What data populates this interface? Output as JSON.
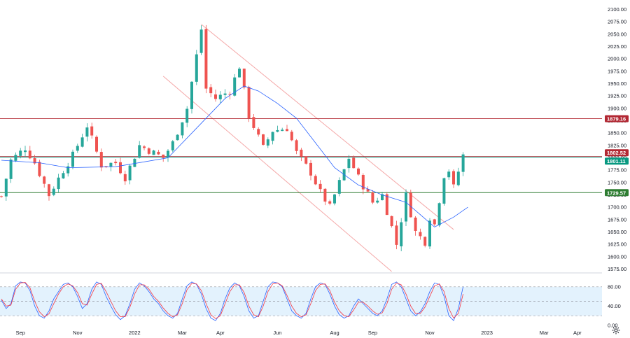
{
  "chart_data": [
    {
      "type": "candlestick",
      "title": "",
      "price_axis": {
        "ylim": [
          1570,
          2105
        ],
        "ticks": [
          "2100.00",
          "2075.00",
          "2050.00",
          "2025.00",
          "2000.00",
          "1975.00",
          "1950.00",
          "1925.00",
          "1900.00",
          "1875.00",
          "1850.00",
          "1825.00",
          "1800.00",
          "1775.00",
          "1750.00",
          "1725.00",
          "1700.00",
          "1675.00",
          "1650.00",
          "1625.00",
          "1600.00",
          "1575.00"
        ],
        "tick_values": [
          2100,
          2075,
          2050,
          2025,
          2000,
          1975,
          1950,
          1925,
          1900,
          1875,
          1850,
          1825,
          1800,
          1775,
          1750,
          1725,
          1700,
          1675,
          1650,
          1625,
          1600,
          1575
        ]
      },
      "time_axis": {
        "labels": [
          "Sep",
          "Nov",
          "2022",
          "Mar",
          "Apr",
          "Jun",
          "Aug",
          "Sep",
          "Nov",
          "2023",
          "Mar",
          "Apr"
        ],
        "label_bars": [
          4,
          16,
          28,
          38,
          46,
          58,
          70,
          78,
          90,
          102,
          114,
          121
        ]
      },
      "ohlc_anchors": [
        {
          "bar": 0,
          "close": 1722
        },
        {
          "bar": 2,
          "close": 1795
        },
        {
          "bar": 5,
          "close": 1820
        },
        {
          "bar": 7,
          "close": 1790
        },
        {
          "bar": 10,
          "close": 1725
        },
        {
          "bar": 13,
          "close": 1775
        },
        {
          "bar": 15,
          "close": 1805
        },
        {
          "bar": 18,
          "close": 1865
        },
        {
          "bar": 21,
          "close": 1785
        },
        {
          "bar": 24,
          "close": 1790
        },
        {
          "bar": 26,
          "close": 1760
        },
        {
          "bar": 29,
          "close": 1825
        },
        {
          "bar": 31,
          "close": 1815
        },
        {
          "bar": 34,
          "close": 1800
        },
        {
          "bar": 36,
          "close": 1830
        },
        {
          "bar": 39,
          "close": 1900
        },
        {
          "bar": 42,
          "close": 2060
        },
        {
          "bar": 43,
          "close": 1940
        },
        {
          "bar": 45,
          "close": 1920
        },
        {
          "bar": 48,
          "close": 1935
        },
        {
          "bar": 50,
          "close": 1985
        },
        {
          "bar": 52,
          "close": 1885
        },
        {
          "bar": 55,
          "close": 1820
        },
        {
          "bar": 57,
          "close": 1855
        },
        {
          "bar": 60,
          "close": 1860
        },
        {
          "bar": 62,
          "close": 1810
        },
        {
          "bar": 65,
          "close": 1770
        },
        {
          "bar": 67,
          "close": 1730
        },
        {
          "bar": 69,
          "close": 1700
        },
        {
          "bar": 71,
          "close": 1750
        },
        {
          "bar": 73,
          "close": 1800
        },
        {
          "bar": 75,
          "close": 1760
        },
        {
          "bar": 78,
          "close": 1710
        },
        {
          "bar": 80,
          "close": 1725
        },
        {
          "bar": 82,
          "close": 1660
        },
        {
          "bar": 83,
          "close": 1625
        },
        {
          "bar": 85,
          "close": 1725
        },
        {
          "bar": 87,
          "close": 1650
        },
        {
          "bar": 89,
          "close": 1630
        },
        {
          "bar": 90,
          "close": 1680
        },
        {
          "bar": 91,
          "close": 1665
        },
        {
          "bar": 93,
          "close": 1765
        },
        {
          "bar": 94,
          "close": 1775
        },
        {
          "bar": 95,
          "close": 1740
        },
        {
          "bar": 97,
          "close": 1805
        }
      ],
      "moving_average": {
        "color": "#2962ff",
        "points": [
          {
            "bar": 0,
            "value": 1795
          },
          {
            "bar": 8,
            "value": 1790
          },
          {
            "bar": 14,
            "value": 1780
          },
          {
            "bar": 24,
            "value": 1782
          },
          {
            "bar": 35,
            "value": 1800
          },
          {
            "bar": 40,
            "value": 1850
          },
          {
            "bar": 47,
            "value": 1920
          },
          {
            "bar": 51,
            "value": 1945
          },
          {
            "bar": 54,
            "value": 1935
          },
          {
            "bar": 58,
            "value": 1910
          },
          {
            "bar": 62,
            "value": 1880
          },
          {
            "bar": 66,
            "value": 1830
          },
          {
            "bar": 70,
            "value": 1780
          },
          {
            "bar": 75,
            "value": 1745
          },
          {
            "bar": 80,
            "value": 1725
          },
          {
            "bar": 85,
            "value": 1710
          },
          {
            "bar": 88,
            "value": 1685
          },
          {
            "bar": 91,
            "value": 1660
          },
          {
            "bar": 95,
            "value": 1680
          },
          {
            "bar": 98,
            "value": 1700
          }
        ]
      },
      "channel_lines": [
        {
          "from": {
            "bar": 42,
            "value": 2070
          },
          "to": {
            "bar": 95,
            "value": 1655
          }
        },
        {
          "from": {
            "bar": 34,
            "value": 1965
          },
          "to": {
            "bar": 82,
            "value": 1570
          }
        }
      ],
      "horizontal_levels": [
        {
          "value": 1879.16,
          "label": "1879.16",
          "color": "#b22833"
        },
        {
          "value": 1802.52,
          "label": "1802.52",
          "color": "#b22833"
        },
        {
          "value": 1801.11,
          "label": "1801.11",
          "color": "#089981"
        },
        {
          "value": 1729.57,
          "label": "1729.57",
          "color": "#2e7d32"
        }
      ],
      "colors": {
        "up": "#26a69a",
        "down": "#ef5350",
        "channel": "#f4a7a7"
      }
    },
    {
      "type": "line",
      "title": "",
      "ylim": [
        0,
        100
      ],
      "ticks": [
        "80.00",
        "40.00",
        "0.00"
      ],
      "tick_values": [
        80,
        40,
        0
      ],
      "overbought": 80,
      "middle": 50,
      "oversold": 20,
      "band_color": "#e3f2fd",
      "series": [
        {
          "color": "#2962ff",
          "values": [
            52,
            35,
            45,
            82,
            90,
            88,
            72,
            40,
            20,
            15,
            30,
            55,
            70,
            85,
            88,
            80,
            60,
            35,
            45,
            75,
            90,
            85,
            60,
            40,
            22,
            12,
            20,
            45,
            75,
            88,
            82,
            70,
            55,
            45,
            30,
            20,
            15,
            25,
            55,
            82,
            90,
            85,
            65,
            35,
            15,
            10,
            25,
            55,
            78,
            88,
            82,
            60,
            30,
            15,
            20,
            50,
            80,
            90,
            88,
            80,
            55,
            30,
            20,
            15,
            25,
            55,
            80,
            88,
            85,
            65,
            40,
            22,
            15,
            20,
            40,
            55,
            45,
            35,
            25,
            20,
            30,
            55,
            85,
            90,
            80,
            55,
            30,
            20,
            28,
            45,
            70,
            88,
            85,
            60,
            20,
            10,
            35,
            80
          ]
        },
        {
          "color": "#f23645",
          "values": [
            55,
            40,
            42,
            75,
            88,
            89,
            78,
            50,
            28,
            18,
            24,
            45,
            65,
            80,
            86,
            82,
            68,
            45,
            42,
            65,
            85,
            87,
            70,
            50,
            30,
            18,
            18,
            38,
            65,
            84,
            84,
            75,
            60,
            50,
            36,
            25,
            18,
            22,
            45,
            74,
            87,
            86,
            72,
            45,
            22,
            14,
            20,
            45,
            70,
            84,
            84,
            68,
            40,
            22,
            18,
            40,
            70,
            86,
            88,
            82,
            62,
            40,
            25,
            18,
            22,
            45,
            72,
            85,
            86,
            72,
            48,
            30,
            20,
            18,
            32,
            48,
            48,
            40,
            30,
            23,
            26,
            45,
            75,
            88,
            84,
            65,
            40,
            25,
            25,
            38,
            60,
            82,
            86,
            70,
            35,
            15,
            25,
            65
          ]
        }
      ]
    }
  ]
}
